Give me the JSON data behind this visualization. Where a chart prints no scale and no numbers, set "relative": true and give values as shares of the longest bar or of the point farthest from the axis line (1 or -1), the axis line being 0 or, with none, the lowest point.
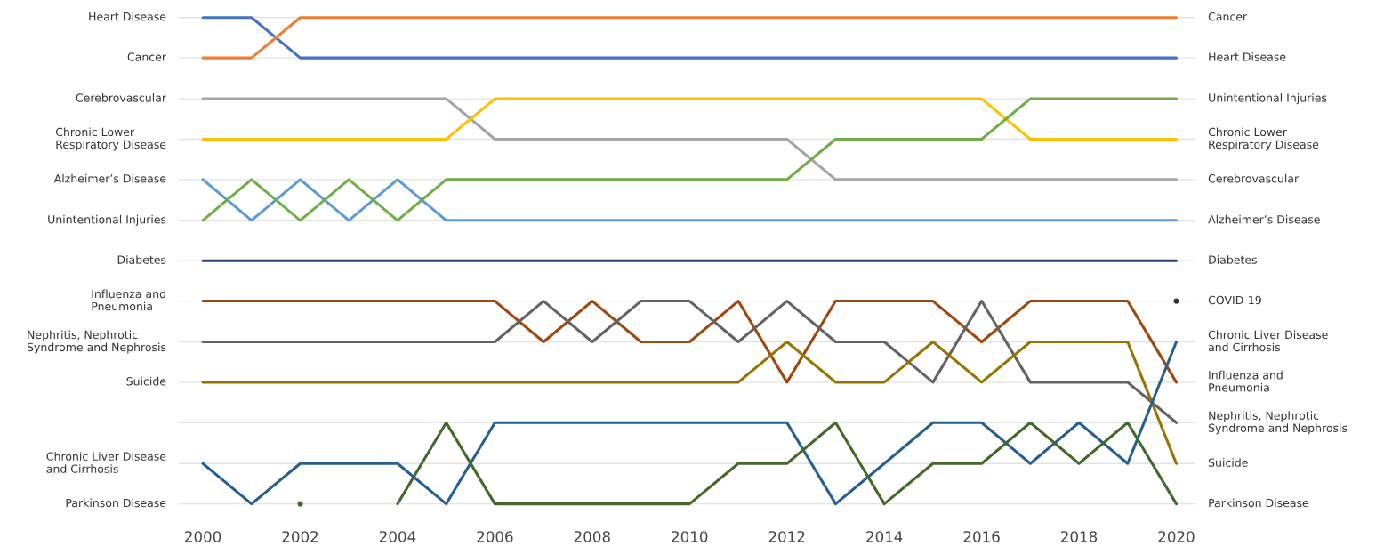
{
  "chart_data": {
    "type": "line",
    "relative": true,
    "x": [
      2000,
      2001,
      2002,
      2003,
      2004,
      2005,
      2006,
      2007,
      2008,
      2009,
      2010,
      2011,
      2012,
      2013,
      2014,
      2015,
      2016,
      2017,
      2018,
      2019,
      2020
    ],
    "xlim": [
      1999.5,
      2020.4
    ],
    "xticks": [
      2000,
      2002,
      2004,
      2006,
      2008,
      2010,
      2012,
      2014,
      2016,
      2018,
      2020
    ],
    "grid": "y",
    "legend": false,
    "marker": "none",
    "series": [
      {
        "name": "Heart Disease",
        "color": "#4472c4",
        "values": [
          1,
          1,
          0.917,
          0.917,
          0.917,
          0.917,
          0.917,
          0.917,
          0.917,
          0.917,
          0.917,
          0.917,
          0.917,
          0.917,
          0.917,
          0.917,
          0.917,
          0.917,
          0.917,
          0.917,
          0.917
        ]
      },
      {
        "name": "Cancer",
        "color": "#ed7d31",
        "values": [
          0.917,
          0.917,
          1,
          1,
          1,
          1,
          1,
          1,
          1,
          1,
          1,
          1,
          1,
          1,
          1,
          1,
          1,
          1,
          1,
          1,
          1
        ]
      },
      {
        "name": "Cerebrovascular",
        "color": "#a5a5a5",
        "values": [
          0.833,
          0.833,
          0.833,
          0.833,
          0.833,
          0.833,
          0.75,
          0.75,
          0.75,
          0.75,
          0.75,
          0.75,
          0.75,
          0.667,
          0.667,
          0.667,
          0.667,
          0.667,
          0.667,
          0.667,
          0.667
        ]
      },
      {
        "name": "Chronic Lower Respiratory Disease",
        "color": "#ffc000",
        "values": [
          0.75,
          0.75,
          0.75,
          0.75,
          0.75,
          0.75,
          0.833,
          0.833,
          0.833,
          0.833,
          0.833,
          0.833,
          0.833,
          0.833,
          0.833,
          0.833,
          0.833,
          0.75,
          0.75,
          0.75,
          0.75
        ]
      },
      {
        "name": "Alzheimer’s Disease",
        "color": "#5b9bd5",
        "values": [
          0.667,
          0.583,
          0.667,
          0.583,
          0.667,
          0.583,
          0.583,
          0.583,
          0.583,
          0.583,
          0.583,
          0.583,
          0.583,
          0.583,
          0.583,
          0.583,
          0.583,
          0.583,
          0.583,
          0.583,
          0.583
        ]
      },
      {
        "name": "Unintentional Injuries",
        "color": "#70ad47",
        "values": [
          0.583,
          0.667,
          0.583,
          0.667,
          0.583,
          0.667,
          0.667,
          0.667,
          0.667,
          0.667,
          0.667,
          0.667,
          0.667,
          0.75,
          0.75,
          0.75,
          0.75,
          0.833,
          0.833,
          0.833,
          0.833
        ]
      },
      {
        "name": "Diabetes",
        "color": "#264478",
        "values": [
          0.5,
          0.5,
          0.5,
          0.5,
          0.5,
          0.5,
          0.5,
          0.5,
          0.5,
          0.5,
          0.5,
          0.5,
          0.5,
          0.5,
          0.5,
          0.5,
          0.5,
          0.5,
          0.5,
          0.5,
          0.5
        ]
      },
      {
        "name": "Influenza and Pneumonia",
        "color": "#9e480e",
        "values": [
          0.417,
          0.417,
          0.417,
          0.417,
          0.417,
          0.417,
          0.417,
          0.333,
          0.417,
          0.333,
          0.333,
          0.417,
          0.25,
          0.417,
          0.417,
          0.417,
          0.333,
          0.417,
          0.417,
          0.417,
          0.25
        ]
      },
      {
        "name": "Nephritis, Nephrotic Syndrome and Nephrosis",
        "color": "#636363",
        "values": [
          0.333,
          0.333,
          0.333,
          0.333,
          0.333,
          0.333,
          0.333,
          0.417,
          0.333,
          0.417,
          0.417,
          0.333,
          0.417,
          0.333,
          0.333,
          0.25,
          0.417,
          0.25,
          0.25,
          0.25,
          0.167
        ]
      },
      {
        "name": "Suicide",
        "color": "#997300",
        "values": [
          0.25,
          0.25,
          0.25,
          0.25,
          0.25,
          0.25,
          0.25,
          0.25,
          0.25,
          0.25,
          0.25,
          0.25,
          0.333,
          0.25,
          0.25,
          0.333,
          0.25,
          0.333,
          0.333,
          0.333,
          0.083
        ]
      },
      {
        "name": "Chronic Liver Disease and Cirrhosis",
        "color": "#255e91",
        "values": [
          0.083,
          0,
          0.083,
          0.083,
          0.083,
          0,
          0.167,
          0.167,
          0.167,
          0.167,
          0.167,
          0.167,
          0.167,
          0,
          0.083,
          0.167,
          0.167,
          0.083,
          0.167,
          0.083,
          0.333
        ]
      },
      {
        "name": "Parkinson Disease",
        "color": "#43682b",
        "values": [
          null,
          null,
          0,
          null,
          0,
          0.167,
          0,
          0,
          0,
          0,
          0,
          0.083,
          0.083,
          0.167,
          0,
          0.083,
          0.083,
          0.167,
          0.083,
          0.167,
          0
        ]
      },
      {
        "name": "COVID-19",
        "color": "#333333",
        "values": [
          null,
          null,
          null,
          null,
          null,
          null,
          null,
          null,
          null,
          null,
          null,
          null,
          null,
          null,
          null,
          null,
          null,
          null,
          null,
          null,
          0.417
        ]
      }
    ]
  }
}
